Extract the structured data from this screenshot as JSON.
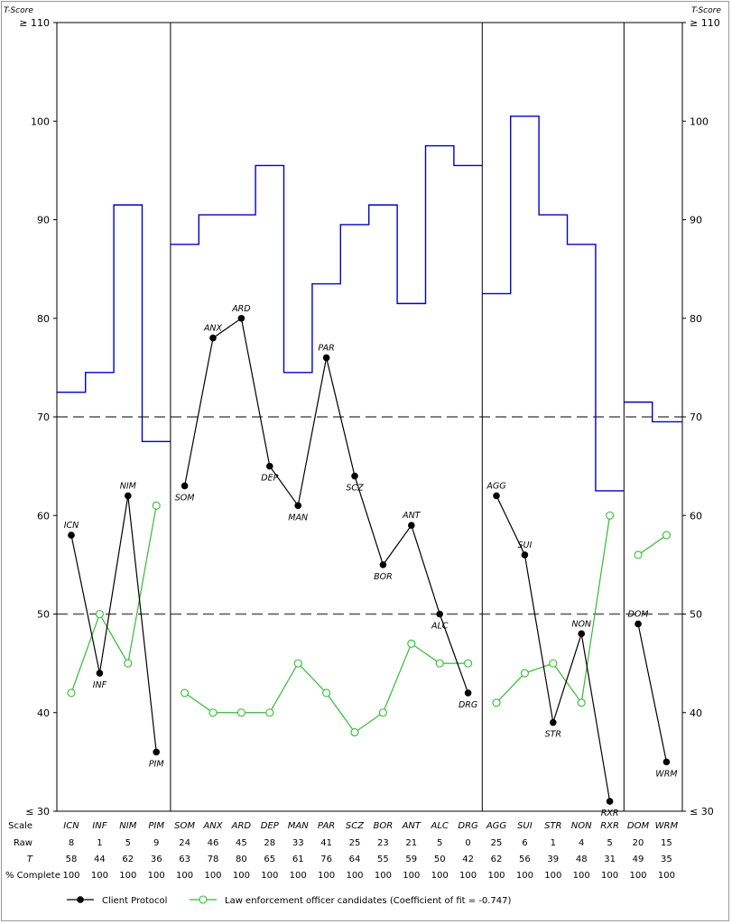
{
  "chart_data": {
    "type": "line",
    "y_axis_title_left": "T-Score",
    "y_axis_title_right": "T-Score",
    "ylim": [
      30,
      110
    ],
    "yticks": [
      {
        "value": 110,
        "label": "≥ 110"
      },
      {
        "value": 100,
        "label": "100"
      },
      {
        "value": 90,
        "label": "90"
      },
      {
        "value": 80,
        "label": "80"
      },
      {
        "value": 70,
        "label": "70"
      },
      {
        "value": 60,
        "label": "60"
      },
      {
        "value": 50,
        "label": "50"
      },
      {
        "value": 40,
        "label": "40"
      },
      {
        "value": 30,
        "label": "≤ 30"
      }
    ],
    "reference_lines": [
      70,
      50
    ],
    "categories": [
      "ICN",
      "INF",
      "NIM",
      "PIM",
      "SOM",
      "ANX",
      "ARD",
      "DEP",
      "MAN",
      "PAR",
      "SCZ",
      "BOR",
      "ANT",
      "ALC",
      "DRG",
      "AGG",
      "SUI",
      "STR",
      "NON",
      "RXR",
      "DOM",
      "WRM"
    ],
    "groups": [
      [
        0,
        3
      ],
      [
        4,
        14
      ],
      [
        15,
        19
      ],
      [
        20,
        21
      ]
    ],
    "series": [
      {
        "name": "Client Protocol",
        "color": "#000000",
        "values": [
          58,
          44,
          62,
          36,
          63,
          78,
          80,
          65,
          61,
          76,
          64,
          55,
          59,
          50,
          42,
          62,
          56,
          39,
          48,
          31,
          49,
          35
        ]
      },
      {
        "name": "Law enforcement officer candidates (Coefficient of fit = -0.747)",
        "color": "#33bb33",
        "values": [
          42,
          50,
          45,
          61,
          42,
          40,
          40,
          40,
          45,
          42,
          38,
          40,
          47,
          45,
          45,
          41,
          44,
          45,
          41,
          60,
          56,
          58
        ]
      }
    ],
    "upper_bound": {
      "color": "#0000cc",
      "values": [
        72.5,
        74.5,
        91.5,
        67.5,
        87.5,
        90.5,
        90.5,
        95.5,
        74.5,
        83.5,
        89.5,
        91.5,
        81.5,
        97.5,
        95.5,
        82.5,
        100.5,
        90.5,
        87.5,
        62.5,
        71.5,
        69.5
      ]
    },
    "table": {
      "row_labels": [
        "Scale",
        "Raw",
        "T",
        "% Complete"
      ],
      "raw": [
        "8",
        "1",
        "5",
        "9",
        "24",
        "46",
        "45",
        "28",
        "33",
        "41",
        "25",
        "23",
        "21",
        "5",
        "0",
        "25",
        "6",
        "1",
        "4",
        "5",
        "20",
        "15"
      ],
      "t": [
        "58",
        "44",
        "62",
        "36",
        "63",
        "78",
        "80",
        "65",
        "61",
        "76",
        "64",
        "55",
        "59",
        "50",
        "42",
        "62",
        "56",
        "39",
        "48",
        "31",
        "49",
        "35"
      ],
      "complete": [
        "100",
        "100",
        "100",
        "100",
        "100",
        "100",
        "100",
        "100",
        "100",
        "100",
        "100",
        "100",
        "100",
        "100",
        "100",
        "100",
        "100",
        "100",
        "100",
        "100",
        "100",
        "100"
      ]
    },
    "legend": [
      {
        "label": "Client Protocol"
      },
      {
        "label": "Law enforcement officer candidates (Coefficient of fit = -0.747)"
      }
    ]
  }
}
